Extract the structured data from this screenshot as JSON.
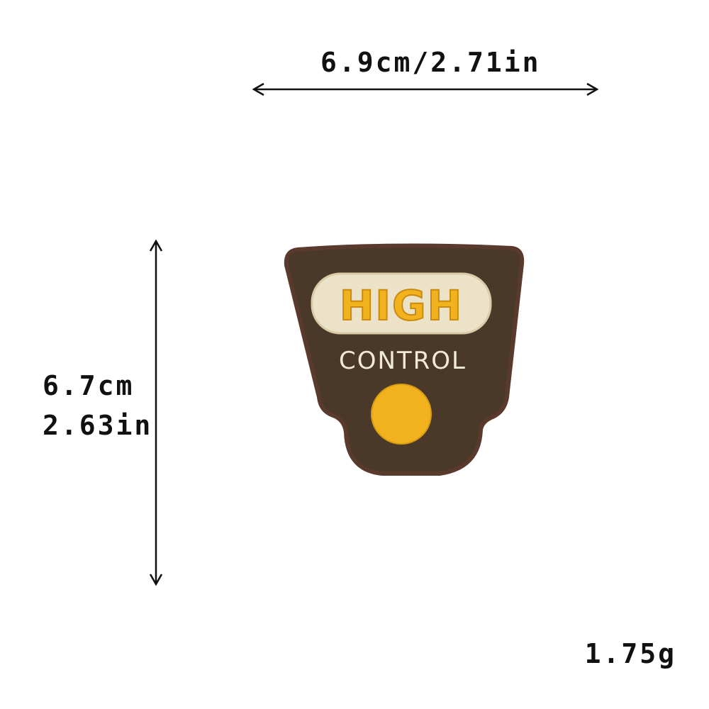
{
  "dimensions": {
    "width_label": "6.9cm/2.71in",
    "height_cm": "6.7cm",
    "height_in": "2.63in"
  },
  "weight": "1.75g",
  "patch": {
    "line1": "HIGH",
    "line2": "CONTROL"
  },
  "colors": {
    "background": "#ffffff",
    "patch_body": "#4a3828",
    "patch_border": "#5a3a2c",
    "banner": "#ece2c8",
    "accent_yellow": "#f1b21e",
    "text_cream": "#f2ead6",
    "arrow": "#111111"
  }
}
